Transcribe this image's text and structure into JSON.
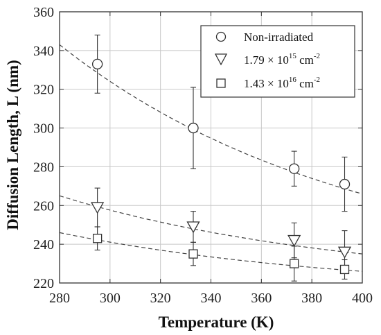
{
  "chart_data": {
    "type": "scatter",
    "xlabel": "Temperature (K)",
    "ylabel": "Diffusion Length, L (nm)",
    "xlim": [
      280,
      400
    ],
    "ylim": [
      220,
      360
    ],
    "xticks": [
      280,
      300,
      320,
      340,
      360,
      380,
      400
    ],
    "yticks": [
      220,
      240,
      260,
      280,
      300,
      320,
      340,
      360
    ],
    "xtick_labels": [
      "280",
      "300",
      "320",
      "340",
      "360",
      "380",
      "400"
    ],
    "ytick_labels": [
      "220",
      "240",
      "260",
      "280",
      "300",
      "320",
      "340",
      "360"
    ],
    "grid": true,
    "legend_position": "top-right",
    "series": [
      {
        "name": "Non-irradiated",
        "marker": "circle",
        "x": [
          295,
          333,
          373,
          393
        ],
        "y": [
          333,
          300,
          279,
          271
        ],
        "yerr": [
          15,
          21,
          9,
          14
        ],
        "fit": {
          "x": [
            280,
            400
          ],
          "y_start": 343,
          "y_end": 266
        }
      },
      {
        "name": "1.79 × 10^15 cm^-2",
        "marker": "triangle-down",
        "x": [
          295,
          333,
          373,
          393
        ],
        "y": [
          259,
          249,
          242,
          236
        ],
        "yerr": [
          10,
          8,
          9,
          11
        ],
        "fit": {
          "x": [
            280,
            400
          ],
          "y_start": 265,
          "y_end": 235
        }
      },
      {
        "name": "1.43 × 10^16 cm^-2",
        "marker": "square",
        "x": [
          295,
          333,
          373,
          393
        ],
        "y": [
          243,
          235,
          230,
          227
        ],
        "yerr": [
          6,
          6,
          9,
          5
        ],
        "fit": {
          "x": [
            280,
            400
          ],
          "y_start": 246,
          "y_end": 226
        }
      }
    ]
  },
  "legend": {
    "entries": [
      {
        "main": "Non-irradiated"
      },
      {
        "main": "1.79 × 10",
        "sup": "15",
        "unit": " cm",
        "unit_sup": "-2"
      },
      {
        "main": "1.43 × 10",
        "sup": "16",
        "unit": " cm",
        "unit_sup": "-2"
      }
    ]
  },
  "colors": {
    "line": "#333333",
    "grid": "#c8c8c8",
    "fit": "#444444"
  }
}
